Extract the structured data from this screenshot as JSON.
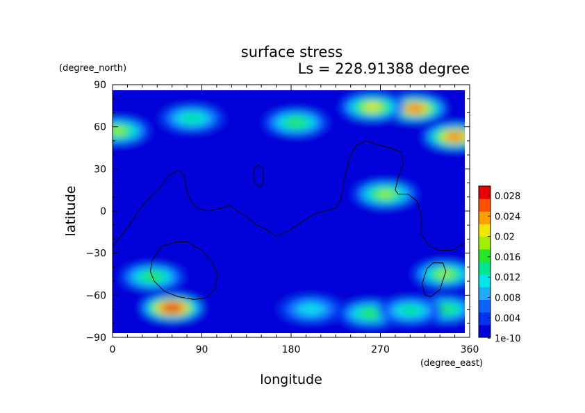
{
  "chart_data": {
    "type": "heatmap",
    "title": "surface stress",
    "subtitle": "Ls = 228.91388 degree",
    "xlabel": "longitude",
    "ylabel": "latitude",
    "x_unit": "(degree_east)",
    "y_unit": "(degree_north)",
    "xlim": [
      0,
      360
    ],
    "ylim": [
      -90,
      90
    ],
    "x_ticks": [
      "0",
      "90",
      "180",
      "270",
      "360"
    ],
    "y_ticks": [
      "90",
      "60",
      "30",
      "0",
      "−30",
      "−60",
      "−90"
    ],
    "colorbar": {
      "min": 0,
      "max": 0.03,
      "tick_labels": [
        "0.028",
        "0.024",
        "0.02",
        "0.016",
        "0.012",
        "0.008",
        "0.004",
        "1e-10"
      ],
      "colors": [
        "#0000d8",
        "#0032f0",
        "#0a64ff",
        "#1eaaff",
        "#00e6e6",
        "#00e690",
        "#28e628",
        "#a0f000",
        "#f0e600",
        "#ffa000",
        "#ff5000",
        "#e60000"
      ]
    },
    "grid": "off",
    "legend": "colorbar-right",
    "hotspots": [
      {
        "lon": 305,
        "lat": 73,
        "value": 0.026
      },
      {
        "lon": 262,
        "lat": 74,
        "value": 0.02
      },
      {
        "lon": 345,
        "lat": 53,
        "value": 0.026
      },
      {
        "lon": 60,
        "lat": -69,
        "value": 0.03
      },
      {
        "lon": 40,
        "lat": -47,
        "value": 0.016
      },
      {
        "lon": 5,
        "lat": 57,
        "value": 0.018
      },
      {
        "lon": 185,
        "lat": 63,
        "value": 0.014
      },
      {
        "lon": 80,
        "lat": 66,
        "value": 0.012
      },
      {
        "lon": 275,
        "lat": 12,
        "value": 0.018
      },
      {
        "lon": 335,
        "lat": -45,
        "value": 0.018
      },
      {
        "lon": 260,
        "lat": -73,
        "value": 0.016
      },
      {
        "lon": 335,
        "lat": -70,
        "value": 0.016
      },
      {
        "lon": 300,
        "lat": -71,
        "value": 0.012
      },
      {
        "lon": 200,
        "lat": -70,
        "value": 0.01
      }
    ],
    "contours": [
      [
        [
          0,
          -25
        ],
        [
          15,
          -12
        ],
        [
          28,
          2
        ],
        [
          38,
          10
        ],
        [
          48,
          16
        ],
        [
          55,
          24
        ],
        [
          65,
          29
        ],
        [
          72,
          26
        ],
        [
          75,
          14
        ],
        [
          80,
          6
        ],
        [
          86,
          2
        ],
        [
          96,
          0
        ],
        [
          110,
          2
        ],
        [
          118,
          4
        ],
        [
          126,
          0
        ],
        [
          135,
          -4
        ],
        [
          145,
          -10
        ],
        [
          155,
          -13
        ],
        [
          165,
          -18
        ],
        [
          178,
          -14
        ],
        [
          190,
          -8
        ],
        [
          204,
          -2
        ],
        [
          215,
          0
        ],
        [
          225,
          2
        ],
        [
          230,
          8
        ],
        [
          232,
          16
        ],
        [
          234,
          24
        ],
        [
          237,
          32
        ],
        [
          240,
          40
        ],
        [
          246,
          47
        ],
        [
          256,
          50
        ],
        [
          268,
          47
        ],
        [
          280,
          45
        ],
        [
          291,
          42
        ],
        [
          293,
          33
        ],
        [
          288,
          24
        ],
        [
          285,
          15
        ],
        [
          288,
          12
        ],
        [
          298,
          12
        ],
        [
          307,
          7
        ],
        [
          312,
          -6
        ],
        [
          311,
          -16
        ],
        [
          319,
          -25
        ],
        [
          330,
          -28
        ],
        [
          342,
          -28
        ],
        [
          352,
          -24
        ],
        [
          360,
          -20
        ]
      ],
      [
        [
          143,
          20
        ],
        [
          149,
          17
        ],
        [
          152,
          20
        ],
        [
          152,
          30
        ],
        [
          147,
          33
        ],
        [
          142,
          29
        ],
        [
          143,
          20
        ]
      ],
      [
        [
          40,
          -35
        ],
        [
          50,
          -25
        ],
        [
          64,
          -22
        ],
        [
          75,
          -22
        ],
        [
          90,
          -28
        ],
        [
          100,
          -36
        ],
        [
          106,
          -45
        ],
        [
          103,
          -56
        ],
        [
          94,
          -62
        ],
        [
          82,
          -63
        ],
        [
          66,
          -61
        ],
        [
          52,
          -57
        ],
        [
          42,
          -50
        ],
        [
          38,
          -43
        ],
        [
          40,
          -35
        ]
      ],
      [
        [
          312,
          -52
        ],
        [
          317,
          -41
        ],
        [
          323,
          -37
        ],
        [
          333,
          -37
        ],
        [
          336,
          -43
        ],
        [
          330,
          -56
        ],
        [
          321,
          -61
        ],
        [
          315,
          -60
        ],
        [
          312,
          -52
        ]
      ]
    ]
  }
}
